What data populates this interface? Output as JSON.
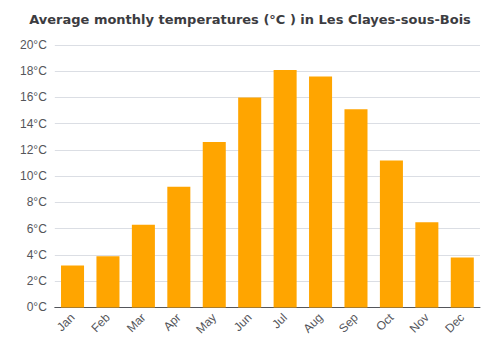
{
  "chart_data": {
    "type": "bar",
    "title": "Average monthly temperatures (°C ) in Les Clayes-sous-Bois",
    "categories": [
      "Jan",
      "Feb",
      "Mar",
      "Apr",
      "May",
      "Jun",
      "Jul",
      "Aug",
      "Sep",
      "Oct",
      "Nov",
      "Dec"
    ],
    "values": [
      3.2,
      3.9,
      6.3,
      9.2,
      12.6,
      16.0,
      18.1,
      17.6,
      15.1,
      11.2,
      6.5,
      3.8
    ],
    "color": "#FFA500",
    "ylim": [
      0,
      20
    ],
    "yticks": [
      {
        "value": 0,
        "label": "0°C"
      },
      {
        "value": 2,
        "label": "2°C"
      },
      {
        "value": 4,
        "label": "4°C"
      },
      {
        "value": 6,
        "label": "6°C"
      },
      {
        "value": 8,
        "label": "8°C"
      },
      {
        "value": 10,
        "label": "10°C"
      },
      {
        "value": 12,
        "label": "12°C"
      },
      {
        "value": 14,
        "label": "14°C"
      },
      {
        "value": 16,
        "label": "16°C"
      },
      {
        "value": 18,
        "label": "18°C"
      },
      {
        "value": 20,
        "label": "20°C"
      }
    ],
    "grid": true
  }
}
